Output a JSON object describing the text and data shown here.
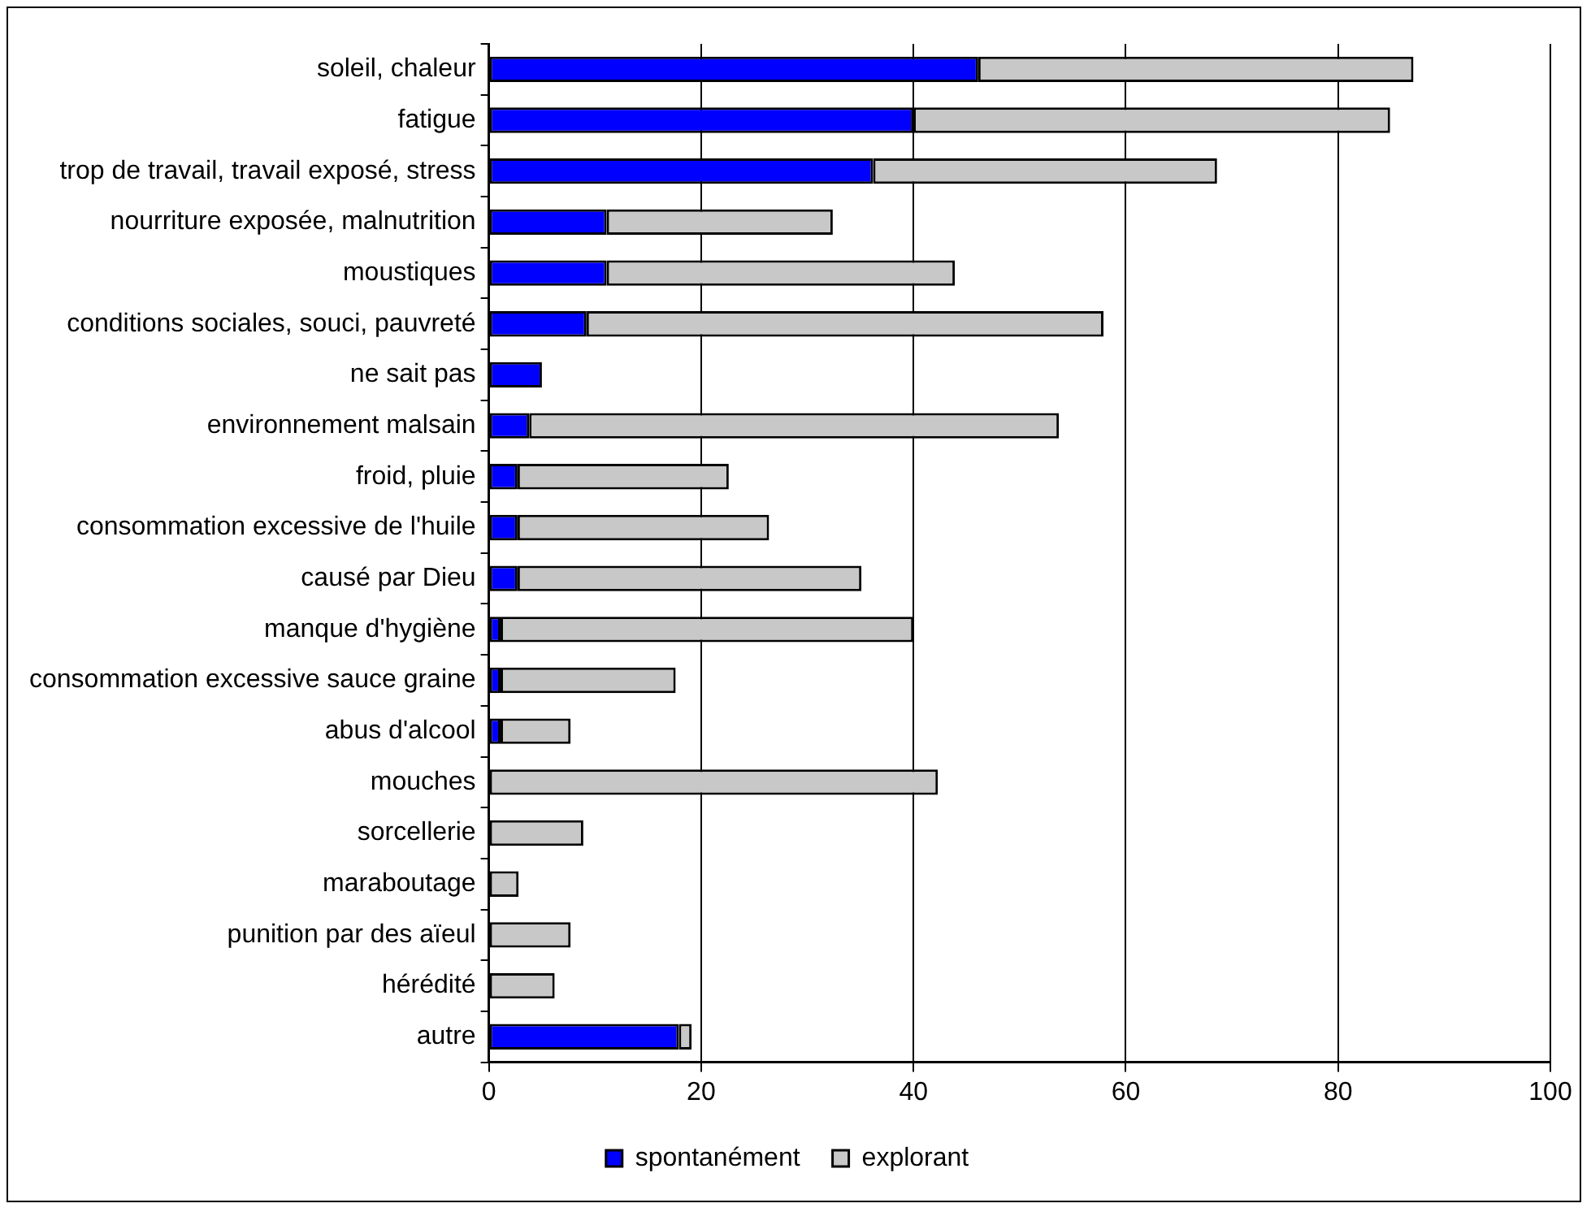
{
  "chart_data": {
    "type": "bar",
    "orientation": "horizontal",
    "stacked": true,
    "categories": [
      "soleil, chaleur",
      "fatigue",
      "trop de travail, travail exposé, stress",
      "nourriture exposée, malnutrition",
      "moustiques",
      "conditions sociales, souci, pauvreté",
      "ne sait pas",
      "environnement malsain",
      "froid, pluie",
      "consommation excessive de l'huile",
      "causé par Dieu",
      "manque d'hygiène",
      "consommation excessive sauce graine",
      "abus d'alcool",
      "mouches",
      "sorcellerie",
      "maraboutage",
      "punition par des aïeul",
      "hérédité",
      "autre"
    ],
    "series": [
      {
        "name": "spontanément",
        "color": "#0000ff",
        "values": [
          46.1,
          40,
          36.2,
          11.1,
          11.1,
          9.2,
          5,
          3.8,
          2.7,
          2.7,
          2.7,
          1.1,
          1.1,
          1.1,
          0,
          0,
          0,
          0,
          0,
          17.9
        ]
      },
      {
        "name": "explorant",
        "color": "#c8c8c8",
        "values": [
          41,
          44.9,
          32.4,
          21.3,
          32.8,
          48.7,
          0,
          49.9,
          19.9,
          23.7,
          32.4,
          38.9,
          16.5,
          6.6,
          42.3,
          8.9,
          2.8,
          7.7,
          6.2,
          1.2
        ]
      }
    ],
    "xlim": [
      0,
      100
    ],
    "xticks": [
      0,
      20,
      40,
      60,
      80,
      100
    ],
    "grid": "x",
    "legend": "bottom"
  }
}
